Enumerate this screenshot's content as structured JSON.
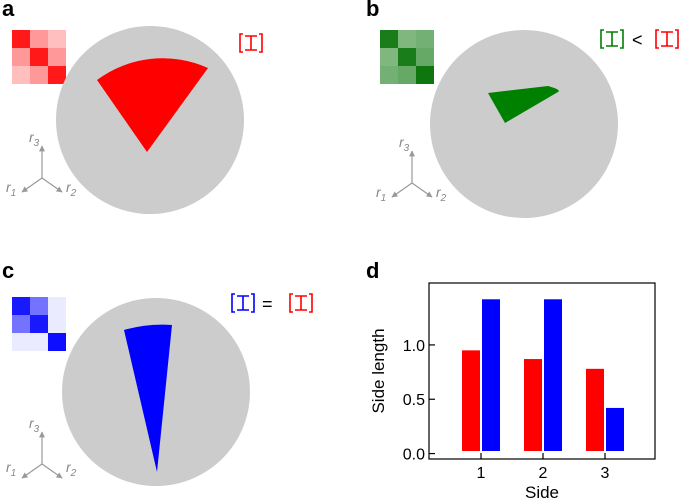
{
  "panels": {
    "a": {
      "label": "a"
    },
    "b": {
      "label": "b"
    },
    "c": {
      "label": "c"
    },
    "d": {
      "label": "d"
    }
  },
  "axes_labels": {
    "r1": "r",
    "r1_sub": "1",
    "r2": "r",
    "r2_sub": "2",
    "r3": "r",
    "r3_sub": "3"
  },
  "relations": {
    "less_than": "<",
    "equals": "="
  },
  "colors": {
    "red": "#ff0000",
    "green": "#008000",
    "blue": "#0000ff",
    "disk": "#cccccc",
    "axis_gray": "#888888"
  },
  "matrices": {
    "a": {
      "color": "#ff0000",
      "cells": [
        [
          0.9,
          0.4,
          0.25
        ],
        [
          0.4,
          0.9,
          0.4
        ],
        [
          0.25,
          0.4,
          0.9
        ]
      ]
    },
    "b": {
      "color": "#007000",
      "cells": [
        [
          0.9,
          0.5,
          0.55
        ],
        [
          0.5,
          0.9,
          0.6
        ],
        [
          0.55,
          0.6,
          0.95
        ]
      ]
    },
    "c": {
      "color": "#0000ff",
      "cells": [
        [
          0.9,
          0.55,
          0.08
        ],
        [
          0.55,
          0.9,
          0.08
        ],
        [
          0.08,
          0.08,
          0.95
        ]
      ]
    }
  },
  "chart_data": {
    "type": "bar",
    "categories": [
      "1",
      "2",
      "3"
    ],
    "series": [
      {
        "color": "#ff0000",
        "values": [
          0.95,
          0.87,
          0.78
        ]
      },
      {
        "color": "#0000ff",
        "values": [
          1.42,
          1.42,
          0.42
        ]
      }
    ],
    "xlabel": "Side",
    "ylabel": "Side length",
    "yticks": [
      "0.0",
      "0.5",
      "1.0"
    ],
    "ytick_values": [
      0,
      0.5,
      1.0
    ],
    "ylim": [
      -0.05,
      1.57
    ],
    "grid": false,
    "legend": "none"
  }
}
